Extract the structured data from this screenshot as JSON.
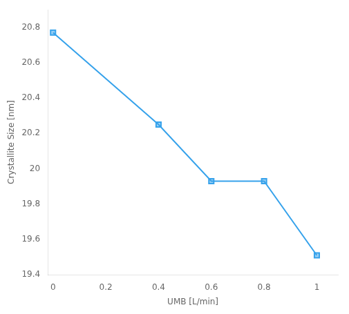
{
  "chart_data": {
    "type": "line",
    "x": [
      0.0,
      0.4,
      0.6,
      0.8,
      1.0
    ],
    "values": [
      20.77,
      20.25,
      19.93,
      19.93,
      19.51
    ],
    "xlabel": "UMB [L/min]",
    "ylabel": "Crystallite Size [nm]",
    "xlim": [
      -0.02,
      1.08
    ],
    "ylim": [
      19.4,
      20.9
    ],
    "xticks": [
      0,
      0.2,
      0.4,
      0.6,
      0.8,
      1
    ],
    "yticks": [
      19.4,
      19.6,
      19.8,
      20,
      20.2,
      20.4,
      20.6,
      20.8
    ],
    "marker": "square",
    "grid": false
  }
}
